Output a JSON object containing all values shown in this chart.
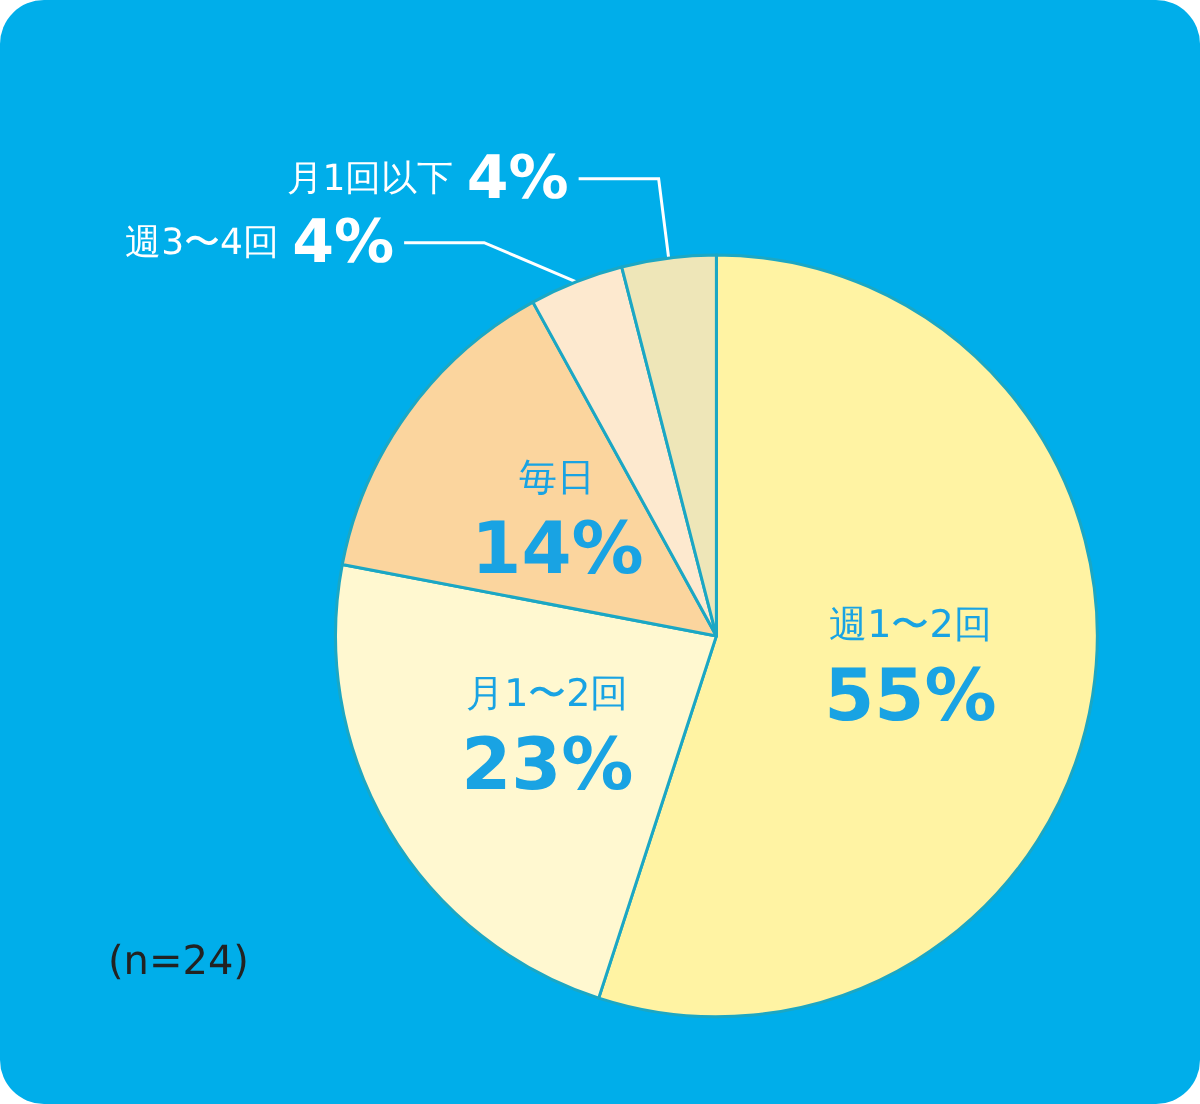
{
  "chart_data": {
    "type": "pie",
    "categories": [
      "週1〜2回",
      "月1〜2回",
      "毎日",
      "週3〜4回",
      "月1回以下"
    ],
    "values": [
      55,
      23,
      14,
      4,
      4
    ],
    "value_labels": [
      "55%",
      "23%",
      "14%",
      "4%",
      "4%"
    ],
    "colors": [
      "#fff3a3",
      "#fff8d0",
      "#fbd59e",
      "#fde9cf",
      "#eee6b8"
    ],
    "annotations": [
      "(n=24)"
    ],
    "legend": false
  }
}
